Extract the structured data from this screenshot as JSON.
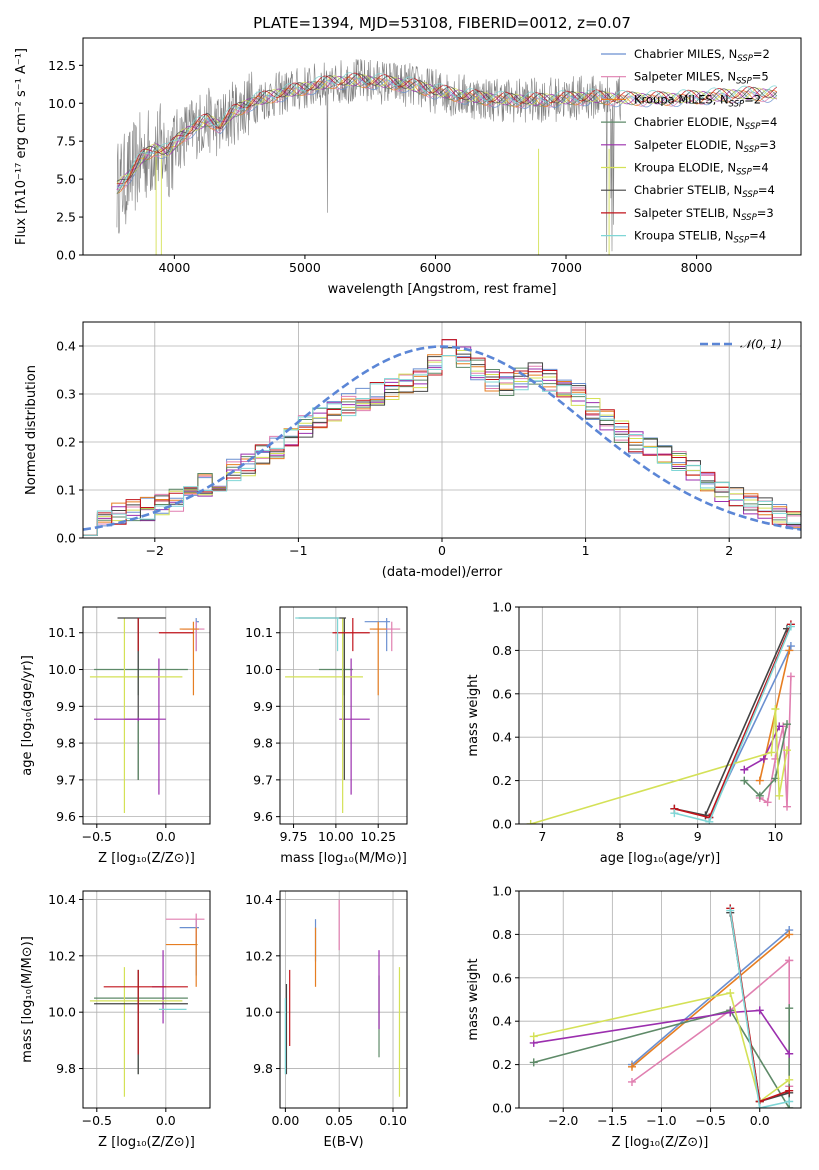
{
  "title": "PLATE=1394, MJD=53108, FIBERID=0012, z=0.07",
  "colors": {
    "models": [
      "#6a8fd0",
      "#e07fb0",
      "#e67e22",
      "#5e8a68",
      "#9b2fae",
      "#d4e157",
      "#444444",
      "#c0141c",
      "#7fd6d6"
    ],
    "data_spectrum": "#808080",
    "gaussian": "#5b86d6",
    "grid": "#b0b0b0"
  },
  "legend": [
    {
      "pre": "Chabrier MILES, N",
      "sub": "SSP",
      "post": "=2"
    },
    {
      "pre": "Salpeter MILES, N",
      "sub": "SSP",
      "post": "=5"
    },
    {
      "pre": "Kroupa MILES, N",
      "sub": "SSP",
      "post": "=2"
    },
    {
      "pre": "Chabrier ELODIE, N",
      "sub": "SSP",
      "post": "=4"
    },
    {
      "pre": "Salpeter ELODIE, N",
      "sub": "SSP",
      "post": "=3"
    },
    {
      "pre": "Kroupa ELODIE, N",
      "sub": "SSP",
      "post": "=4"
    },
    {
      "pre": "Chabrier STELIB, N",
      "sub": "SSP",
      "post": "=4"
    },
    {
      "pre": "Salpeter STELIB, N",
      "sub": "SSP",
      "post": "=3"
    },
    {
      "pre": "Kroupa STELIB, N",
      "sub": "SSP",
      "post": "=4"
    }
  ],
  "labels": {
    "spec_x": "wavelength [Angstrom, rest frame]",
    "spec_y": "Flux [fλ10⁻¹⁷ erg cm⁻² s⁻¹ A⁻¹]",
    "hist_x": "(data-model)/error",
    "hist_y": "Normed distribution",
    "hist_legend": "𝒩(0, 1)",
    "age": "age  [log₁₀(age/yr)]",
    "Z": "Z [log₁₀(Z/Z⊙)]",
    "mass": "mass [log₁₀(M/M⊙)]",
    "ebv": "E(B-V)",
    "mw": "mass weight"
  },
  "chart_data": [
    {
      "id": "spectrum",
      "type": "line",
      "xlim": [
        3300,
        8800
      ],
      "ylim": [
        0,
        14.3
      ],
      "xticks": [
        4000,
        5000,
        6000,
        7000,
        8000
      ],
      "yticks": [
        0.0,
        2.5,
        5.0,
        7.5,
        10.0,
        12.5
      ],
      "grid": false,
      "legend_position": "upper right",
      "continuum": [
        [
          3560,
          4.4
        ],
        [
          3650,
          5.2
        ],
        [
          3750,
          6.4
        ],
        [
          3850,
          7.0
        ],
        [
          3950,
          6.8
        ],
        [
          4050,
          7.8
        ],
        [
          4150,
          8.4
        ],
        [
          4250,
          8.9
        ],
        [
          4350,
          8.5
        ],
        [
          4450,
          9.4
        ],
        [
          4600,
          10.1
        ],
        [
          4800,
          10.6
        ],
        [
          5000,
          11.0
        ],
        [
          5200,
          11.4
        ],
        [
          5400,
          11.5
        ],
        [
          5600,
          11.4
        ],
        [
          5800,
          11.2
        ],
        [
          6000,
          10.8
        ],
        [
          6200,
          10.5
        ],
        [
          6400,
          10.3
        ],
        [
          6600,
          10.2
        ],
        [
          6800,
          10.2
        ],
        [
          7000,
          10.3
        ],
        [
          7200,
          10.4
        ],
        [
          7400,
          10.3
        ],
        [
          7600,
          10.3
        ],
        [
          7800,
          10.3
        ],
        [
          8000,
          10.4
        ],
        [
          8200,
          10.5
        ],
        [
          8400,
          10.6
        ],
        [
          8600,
          10.6
        ]
      ],
      "notes": "observed spectrum (grey) with 9 overlapping model fits"
    },
    {
      "id": "residual_histogram",
      "type": "bar",
      "xlim": [
        -2.5,
        2.5
      ],
      "ylim": [
        0,
        0.45
      ],
      "xticks": [
        -2,
        -1,
        0,
        1,
        2
      ],
      "yticks": [
        0.0,
        0.1,
        0.2,
        0.3,
        0.4
      ],
      "bins": [
        -2.5,
        -2.4,
        -2.3,
        -2.2,
        -2.1,
        -2.0,
        -1.9,
        -1.8,
        -1.7,
        -1.6,
        -1.5,
        -1.4,
        -1.3,
        -1.2,
        -1.1,
        -1.0,
        -0.9,
        -0.8,
        -0.7,
        -0.6,
        -0.5,
        -0.4,
        -0.3,
        -0.2,
        -0.1,
        0.0,
        0.1,
        0.2,
        0.3,
        0.4,
        0.5,
        0.6,
        0.7,
        0.8,
        0.9,
        1.0,
        1.1,
        1.2,
        1.3,
        1.4,
        1.5,
        1.6,
        1.7,
        1.8,
        1.9,
        2.0,
        2.1,
        2.2,
        2.3,
        2.4,
        2.5
      ],
      "base_density": [
        0.03,
        0.04,
        0.05,
        0.06,
        0.06,
        0.07,
        0.08,
        0.09,
        0.11,
        0.12,
        0.14,
        0.15,
        0.17,
        0.19,
        0.21,
        0.23,
        0.25,
        0.26,
        0.28,
        0.29,
        0.3,
        0.31,
        0.32,
        0.33,
        0.36,
        0.4,
        0.38,
        0.35,
        0.33,
        0.32,
        0.33,
        0.34,
        0.33,
        0.31,
        0.3,
        0.27,
        0.25,
        0.22,
        0.2,
        0.19,
        0.17,
        0.16,
        0.14,
        0.12,
        0.1,
        0.08,
        0.07,
        0.06,
        0.05,
        0.04
      ],
      "reference": {
        "name": "𝒩(0, 1)",
        "mean": 0,
        "sigma": 1
      },
      "grid": true
    },
    {
      "id": "age_vs_Z",
      "type": "errorbar",
      "xlim": [
        -0.6,
        0.32
      ],
      "ylim": [
        9.58,
        10.17
      ],
      "xticks": [
        -0.5,
        0.0
      ],
      "yticks": [
        9.6,
        9.7,
        9.8,
        9.9,
        10.0,
        10.1
      ],
      "points": [
        {
          "c": 0,
          "x": 0.22,
          "y": 10.13,
          "xe": [
            0.22,
            0.24
          ],
          "ye": [
            10.05,
            10.14
          ]
        },
        {
          "c": 1,
          "x": 0.22,
          "y": 10.11,
          "xe": [
            0.12,
            0.28
          ],
          "ye": [
            10.05,
            10.13
          ]
        },
        {
          "c": 2,
          "x": 0.2,
          "y": 10.11,
          "xe": [
            0.1,
            0.24
          ],
          "ye": [
            9.93,
            10.13
          ]
        },
        {
          "c": 3,
          "x": -0.2,
          "y": 10.0,
          "xe": [
            -0.52,
            0.16
          ],
          "ye": [
            9.93,
            10.14
          ]
        },
        {
          "c": 4,
          "x": -0.05,
          "y": 9.865,
          "xe": [
            -0.3,
            0.0
          ],
          "ye": [
            9.66,
            10.03
          ]
        },
        {
          "c": 5,
          "x": -0.3,
          "y": 9.98,
          "xe": [
            -0.55,
            0.12
          ],
          "ye": [
            9.61,
            10.14
          ]
        },
        {
          "c": 6,
          "x": -0.2,
          "y": 10.14,
          "xe": [
            -0.35,
            0.0
          ],
          "ye": [
            9.7,
            10.14
          ]
        },
        {
          "c": 7,
          "x": -0.2,
          "y": 10.1,
          "xe": [
            -0.05,
            0.2
          ],
          "ye": [
            10.05,
            10.14
          ]
        },
        {
          "c": 4,
          "x": -0.2,
          "y": 9.865,
          "xe": [
            -0.52,
            -0.05
          ],
          "ye": [
            9.86,
            9.87
          ]
        },
        {
          "c": 3,
          "x": -0.2,
          "y": 9.865,
          "xe": [
            -0.2,
            -0.2
          ],
          "ye": [
            9.7,
            9.86
          ]
        }
      ],
      "grid": true
    },
    {
      "id": "age_vs_mass",
      "type": "errorbar",
      "xlim": [
        9.67,
        10.42
      ],
      "ylim": [
        9.58,
        10.17
      ],
      "xticks": [
        9.75,
        10.0,
        10.25
      ],
      "yticks": [
        9.6,
        9.7,
        9.8,
        9.9,
        10.0,
        10.1
      ],
      "points": [
        {
          "c": 0,
          "x": 10.3,
          "y": 10.13,
          "xe": [
            10.17,
            10.32
          ],
          "ye": [
            10.05,
            10.14
          ]
        },
        {
          "c": 1,
          "x": 10.33,
          "y": 10.11,
          "xe": [
            10.22,
            10.38
          ],
          "ye": [
            10.05,
            10.13
          ]
        },
        {
          "c": 2,
          "x": 10.25,
          "y": 10.11,
          "xe": [
            10.2,
            10.3
          ],
          "ye": [
            9.93,
            10.13
          ]
        },
        {
          "c": 3,
          "x": 10.05,
          "y": 10.0,
          "xe": [
            9.9,
            10.1
          ],
          "ye": [
            9.93,
            10.14
          ]
        },
        {
          "c": 4,
          "x": 10.09,
          "y": 9.865,
          "xe": [
            10.02,
            10.2
          ],
          "ye": [
            9.66,
            10.03
          ]
        },
        {
          "c": 5,
          "x": 10.04,
          "y": 9.98,
          "xe": [
            9.7,
            10.16
          ],
          "ye": [
            9.61,
            10.14
          ]
        },
        {
          "c": 6,
          "x": 10.05,
          "y": 10.14,
          "xe": [
            9.78,
            10.06
          ],
          "ye": [
            9.7,
            10.14
          ]
        },
        {
          "c": 7,
          "x": 10.1,
          "y": 10.1,
          "xe": [
            9.98,
            10.2
          ],
          "ye": [
            10.05,
            10.14
          ]
        },
        {
          "c": 8,
          "x": 10.01,
          "y": 10.14,
          "xe": [
            9.76,
            10.02
          ],
          "ye": [
            10.05,
            10.14
          ]
        }
      ],
      "grid": true
    },
    {
      "id": "mw_vs_age",
      "type": "line",
      "xlim": [
        6.7,
        10.33
      ],
      "ylim": [
        0,
        1.0
      ],
      "xticks": [
        7,
        8,
        9,
        10
      ],
      "yticks": [
        0.0,
        0.2,
        0.4,
        0.6,
        0.8,
        1.0
      ],
      "series": [
        {
          "c": 0,
          "x": [
            9.15,
            10.2
          ],
          "y": [
            0.03,
            0.82
          ]
        },
        {
          "c": 1,
          "x": [
            9.8,
            9.9,
            10.0,
            10.1,
            10.15,
            10.2
          ],
          "y": [
            0.12,
            0.1,
            0.3,
            0.45,
            0.08,
            0.68
          ]
        },
        {
          "c": 2,
          "x": [
            9.8,
            10.18
          ],
          "y": [
            0.2,
            0.8
          ]
        },
        {
          "c": 3,
          "x": [
            9.6,
            9.8,
            10.0,
            10.15
          ],
          "y": [
            0.2,
            0.13,
            0.21,
            0.46
          ]
        },
        {
          "c": 4,
          "x": [
            9.6,
            9.85,
            10.05
          ],
          "y": [
            0.25,
            0.3,
            0.45
          ]
        },
        {
          "c": 5,
          "x": [
            6.85,
            9.95,
            10.0,
            10.05,
            10.15
          ],
          "y": [
            0.0,
            0.33,
            0.53,
            0.13,
            0.34
          ]
        },
        {
          "c": 6,
          "x": [
            8.7,
            9.1,
            10.15
          ],
          "y": [
            0.07,
            0.04,
            0.9
          ]
        },
        {
          "c": 7,
          "x": [
            8.7,
            9.15,
            10.2
          ],
          "y": [
            0.07,
            0.03,
            0.92
          ]
        },
        {
          "c": 8,
          "x": [
            8.7,
            9.15,
            10.2
          ],
          "y": [
            0.05,
            0.01,
            0.91
          ]
        }
      ],
      "grid": true
    },
    {
      "id": "mass_vs_Z",
      "type": "errorbar",
      "xlim": [
        -0.6,
        0.32
      ],
      "ylim": [
        9.66,
        10.43
      ],
      "xticks": [
        -0.5,
        0.0
      ],
      "yticks": [
        9.8,
        10.0,
        10.2,
        10.4
      ],
      "points": [
        {
          "c": 0,
          "x": 0.22,
          "y": 10.3,
          "xe": [
            0.1,
            0.24
          ],
          "ye": [
            10.13,
            10.33
          ]
        },
        {
          "c": 1,
          "x": 0.22,
          "y": 10.33,
          "xe": [
            0.0,
            0.28
          ],
          "ye": [
            10.25,
            10.35
          ]
        },
        {
          "c": 2,
          "x": 0.22,
          "y": 10.24,
          "xe": [
            0.0,
            0.23
          ],
          "ye": [
            10.09,
            10.3
          ]
        },
        {
          "c": 3,
          "x": -0.2,
          "y": 10.05,
          "xe": [
            -0.52,
            0.16
          ],
          "ye": [
            9.78,
            10.15
          ]
        },
        {
          "c": 4,
          "x": -0.02,
          "y": 10.09,
          "xe": [
            -0.1,
            0.0
          ],
          "ye": [
            9.96,
            10.22
          ]
        },
        {
          "c": 5,
          "x": -0.3,
          "y": 10.04,
          "xe": [
            -0.55,
            0.12
          ],
          "ye": [
            9.7,
            10.16
          ]
        },
        {
          "c": 6,
          "x": -0.2,
          "y": 10.03,
          "xe": [
            -0.52,
            0.16
          ],
          "ye": [
            9.78,
            10.15
          ]
        },
        {
          "c": 7,
          "x": -0.2,
          "y": 10.09,
          "xe": [
            -0.45,
            0.16
          ],
          "ye": [
            9.85,
            10.15
          ]
        },
        {
          "c": 8,
          "x": 0.01,
          "y": 10.01,
          "xe": [
            -0.05,
            0.15
          ],
          "ye": [
            10.01,
            10.01
          ]
        }
      ],
      "grid": true
    },
    {
      "id": "mass_vs_ebv",
      "type": "errorbar",
      "xlim": [
        -0.005,
        0.113
      ],
      "ylim": [
        9.66,
        10.43
      ],
      "xticks": [
        0.0,
        0.05,
        0.1
      ],
      "yticks": [
        9.8,
        10.0,
        10.2,
        10.4
      ],
      "points": [
        {
          "c": 0,
          "x": 0.028,
          "y": 10.3,
          "xe": [
            0.028,
            0.028
          ],
          "ye": [
            10.18,
            10.33
          ]
        },
        {
          "c": 1,
          "x": 0.05,
          "y": 10.33,
          "xe": [
            0.05,
            0.05
          ],
          "ye": [
            10.22,
            10.4
          ]
        },
        {
          "c": 2,
          "x": 0.028,
          "y": 10.24,
          "xe": [
            0.028,
            0.028
          ],
          "ye": [
            10.09,
            10.3
          ]
        },
        {
          "c": 3,
          "x": 0.087,
          "y": 10.05,
          "xe": [
            0.087,
            0.087
          ],
          "ye": [
            9.84,
            10.13
          ]
        },
        {
          "c": 4,
          "x": 0.087,
          "y": 10.09,
          "xe": [
            0.087,
            0.087
          ],
          "ye": [
            9.94,
            10.22
          ]
        },
        {
          "c": 5,
          "x": 0.106,
          "y": 10.04,
          "xe": [
            0.106,
            0.106
          ],
          "ye": [
            9.7,
            10.16
          ]
        },
        {
          "c": 6,
          "x": 0.001,
          "y": 10.03,
          "xe": [
            0.001,
            0.001
          ],
          "ye": [
            9.78,
            10.1
          ]
        },
        {
          "c": 7,
          "x": 0.004,
          "y": 10.09,
          "xe": [
            0.004,
            0.004
          ],
          "ye": [
            9.88,
            10.15
          ]
        },
        {
          "c": 8,
          "x": 0.0,
          "y": 10.01,
          "xe": [
            0.0,
            0.0
          ],
          "ye": [
            9.78,
            10.05
          ]
        }
      ],
      "grid": true
    },
    {
      "id": "mw_vs_Z",
      "type": "line",
      "xlim": [
        -2.45,
        0.42
      ],
      "ylim": [
        0,
        1.0
      ],
      "xticks": [
        -2.0,
        -1.5,
        -1.0,
        -0.5,
        0.0
      ],
      "yticks": [
        0.0,
        0.2,
        0.4,
        0.6,
        0.8,
        1.0
      ],
      "series": [
        {
          "c": 0,
          "x": [
            -1.3,
            0.3
          ],
          "y": [
            0.2,
            0.82
          ]
        },
        {
          "c": 1,
          "x": [
            -1.3,
            -0.3,
            0.3,
            0.3,
            0.3
          ],
          "y": [
            0.12,
            0.45,
            0.68,
            0.1,
            0.68
          ]
        },
        {
          "c": 2,
          "x": [
            -1.3,
            0.3
          ],
          "y": [
            0.19,
            0.8
          ]
        },
        {
          "c": 3,
          "x": [
            -2.3,
            -0.3,
            0.3,
            0.3
          ],
          "y": [
            0.21,
            0.45,
            0.0,
            0.46
          ]
        },
        {
          "c": 4,
          "x": [
            -2.3,
            -0.3,
            0.0,
            0.3
          ],
          "y": [
            0.3,
            0.44,
            0.45,
            0.25
          ]
        },
        {
          "c": 5,
          "x": [
            -2.3,
            -0.3,
            0.0,
            0.3
          ],
          "y": [
            0.33,
            0.53,
            0.03,
            0.13
          ]
        },
        {
          "c": 6,
          "x": [
            -0.3,
            0.0,
            0.3
          ],
          "y": [
            0.9,
            0.03,
            0.07
          ]
        },
        {
          "c": 7,
          "x": [
            -0.3,
            0.0,
            0.3
          ],
          "y": [
            0.92,
            0.03,
            0.08
          ]
        },
        {
          "c": 8,
          "x": [
            -0.3,
            0.0,
            0.3
          ],
          "y": [
            0.91,
            0.0,
            0.03
          ]
        }
      ],
      "grid": true
    }
  ]
}
